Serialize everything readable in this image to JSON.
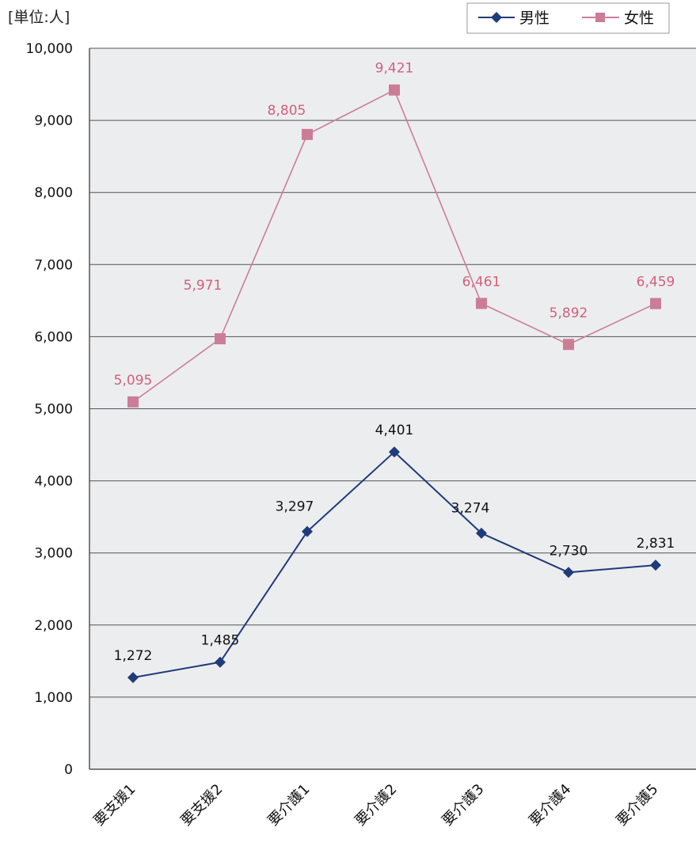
{
  "chart_data": {
    "type": "line",
    "unit_label": "[単位:人]",
    "categories": [
      "要支援1",
      "要支援2",
      "要介護1",
      "要介護2",
      "要介護3",
      "要介護4",
      "要介護5"
    ],
    "y_ticks": [
      "0",
      "1,000",
      "2,000",
      "3,000",
      "4,000",
      "5,000",
      "6,000",
      "7,000",
      "8,000",
      "9,000",
      "10,000"
    ],
    "ylim": [
      0,
      10000
    ],
    "grid": true,
    "legend_position": "top-right",
    "series": [
      {
        "name": "男性",
        "values": [
          1272,
          1485,
          3297,
          4401,
          3274,
          2730,
          2831
        ],
        "labels": [
          "1,272",
          "1,485",
          "3,297",
          "4,401",
          "3,274",
          "2,730",
          "2,831"
        ],
        "color": "#1f3b7a",
        "marker": "diamond"
      },
      {
        "name": "女性",
        "values": [
          5095,
          5971,
          8805,
          9421,
          6461,
          5892,
          6459
        ],
        "labels": [
          "5,095",
          "5,971",
          "8,805",
          "9,421",
          "6,461",
          "5,892",
          "6,459"
        ],
        "color": "#cc7d96",
        "label_color": "#d2607a",
        "marker": "square"
      }
    ]
  }
}
